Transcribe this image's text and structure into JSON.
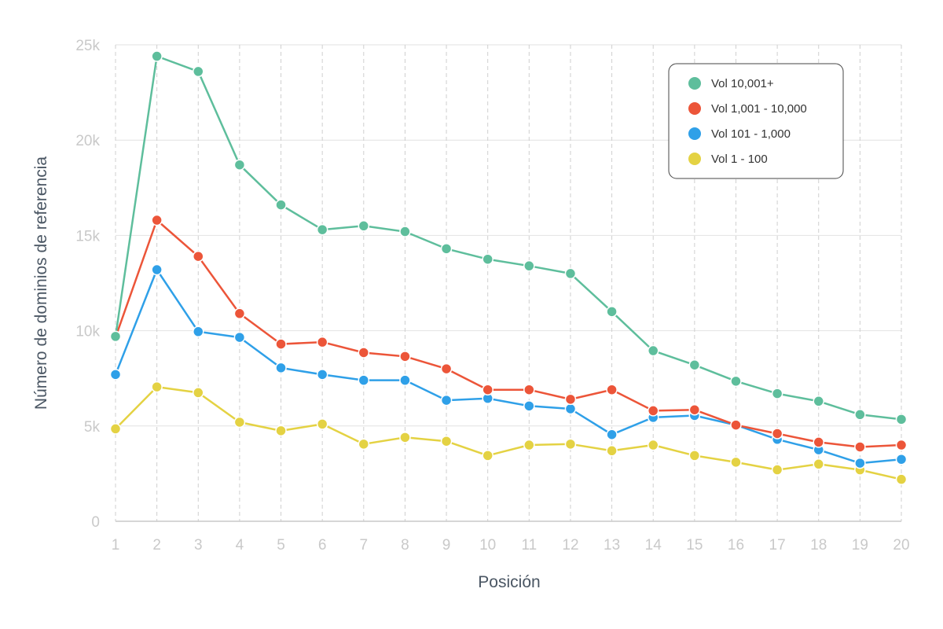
{
  "chart_data": {
    "type": "line",
    "xlabel": "Posición",
    "ylabel": "Número de dominios de referencia",
    "x": [
      1,
      2,
      3,
      4,
      5,
      6,
      7,
      8,
      9,
      10,
      11,
      12,
      13,
      14,
      15,
      16,
      17,
      18,
      19,
      20
    ],
    "x_tick_labels": [
      "1",
      "2",
      "3",
      "4",
      "5",
      "6",
      "7",
      "8",
      "9",
      "10",
      "11",
      "12",
      "13",
      "14",
      "15",
      "16",
      "17",
      "18",
      "19",
      "20"
    ],
    "ylim": [
      0,
      25000
    ],
    "y_ticks": [
      0,
      5000,
      10000,
      15000,
      20000,
      25000
    ],
    "y_tick_labels": [
      "0",
      "5k",
      "10k",
      "15k",
      "20k",
      "25k"
    ],
    "grid": true,
    "legend_position": "top-right",
    "series": [
      {
        "name": "Vol 10,001+",
        "color": "#5ebe9c",
        "values": [
          9700,
          24400,
          23600,
          18700,
          16600,
          15300,
          15500,
          15200,
          14300,
          13750,
          13400,
          13000,
          11000,
          8950,
          8200,
          7350,
          6700,
          6300,
          5600,
          5350
        ]
      },
      {
        "name": "Vol 1,001 - 10,000",
        "color": "#ec5539",
        "values": [
          9650,
          15800,
          13900,
          10900,
          9300,
          9400,
          8850,
          8650,
          8000,
          6900,
          6900,
          6400,
          6900,
          5800,
          5850,
          5050,
          4600,
          4150,
          3900,
          4000
        ]
      },
      {
        "name": "Vol 101 - 1,000",
        "color": "#2fa0e8",
        "values": [
          7700,
          13200,
          9950,
          9650,
          8050,
          7700,
          7400,
          7400,
          6350,
          6450,
          6050,
          5900,
          4550,
          5450,
          5550,
          5050,
          4300,
          3750,
          3050,
          3250
        ]
      },
      {
        "name": "Vol 1 - 100",
        "color": "#e4d243",
        "values": [
          4850,
          7050,
          6750,
          5200,
          4750,
          5100,
          4050,
          4400,
          4200,
          3450,
          4000,
          4050,
          3700,
          4000,
          3450,
          3100,
          2700,
          3000,
          2700,
          2200
        ]
      }
    ]
  }
}
